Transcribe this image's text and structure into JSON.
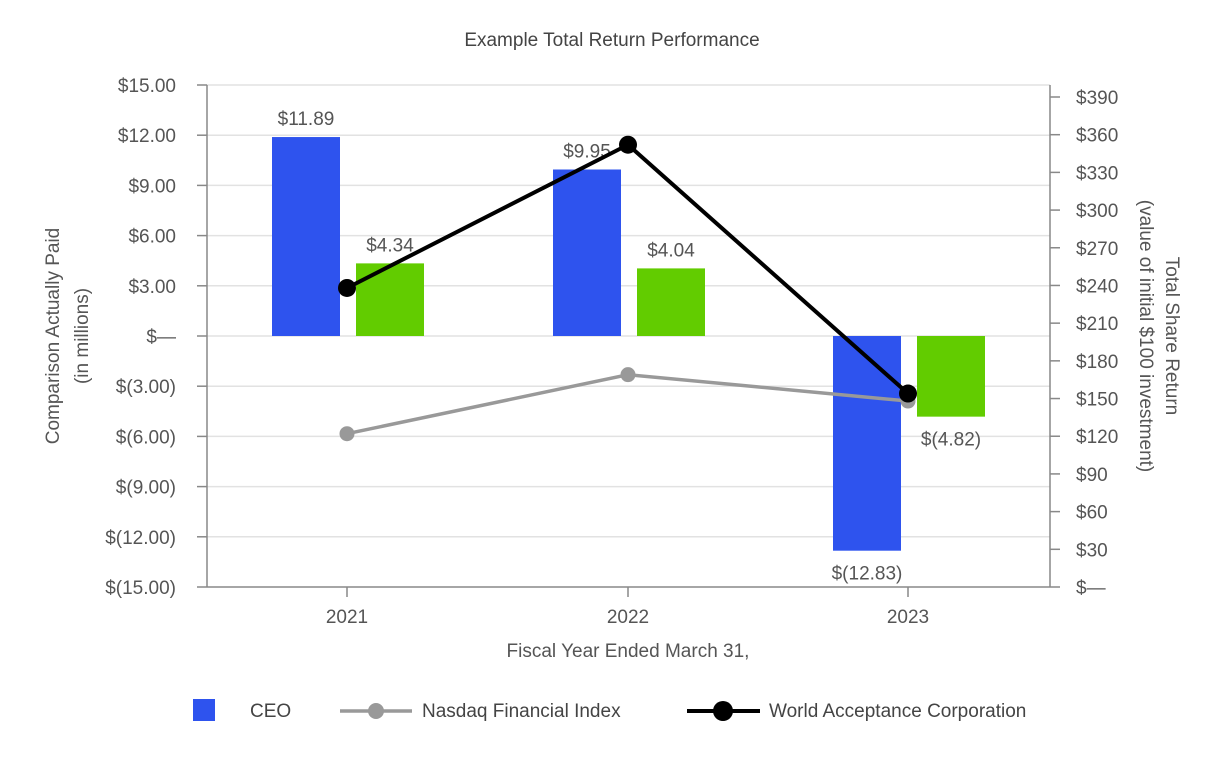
{
  "chart_data": {
    "type": "bar",
    "title": "Example Total Return Performance",
    "xlabel": "Fiscal Year Ended March 31,",
    "ylabel_left": [
      "Comparison Actually Paid",
      "(in millions)"
    ],
    "ylabel_right": [
      "Total Share Return",
      "(value of initial $100 investment)"
    ],
    "categories": [
      "2021",
      "2022",
      "2023"
    ],
    "left_axis": {
      "ylim": [
        -15,
        15
      ],
      "ticks": [
        15,
        12,
        9,
        6,
        3,
        0,
        -3,
        -6,
        -9,
        -12,
        -15
      ],
      "tick_labels": [
        "$15.00",
        "$12.00",
        "$9.00",
        "$6.00",
        "$3.00",
        "$—",
        "$(3.00)",
        "$(6.00)",
        "$(9.00)",
        "$(12.00)",
        "$(15.00)"
      ]
    },
    "right_axis": {
      "ylim": [
        0,
        390
      ],
      "ticks": [
        390,
        360,
        330,
        300,
        270,
        240,
        210,
        180,
        150,
        120,
        90,
        60,
        30,
        0
      ],
      "tick_labels": [
        "$390",
        "$360",
        "$330",
        "$300",
        "$270",
        "$240",
        "$210",
        "$180",
        "$150",
        "$120",
        "$90",
        "$60",
        "$30",
        "$—"
      ]
    },
    "bar_series": [
      {
        "name": "CEO",
        "color": "#2e53ee",
        "values": [
          11.89,
          9.95,
          -12.83
        ],
        "labels": [
          "$11.89",
          "$9.95",
          "$(12.83)"
        ]
      },
      {
        "name": "",
        "color": "#62cc00",
        "values": [
          4.34,
          4.04,
          -4.82
        ],
        "labels": [
          "$4.34",
          "$4.04",
          "$(4.82)"
        ]
      }
    ],
    "line_series": [
      {
        "name": "Nasdaq Financial Index",
        "color": "#999999",
        "axis": "right",
        "values": [
          122,
          169,
          148
        ]
      },
      {
        "name": "World Acceptance Corporation",
        "color": "#000000",
        "axis": "right",
        "values": [
          238,
          352,
          154
        ]
      }
    ],
    "grid": true,
    "legend_position": "bottom"
  }
}
